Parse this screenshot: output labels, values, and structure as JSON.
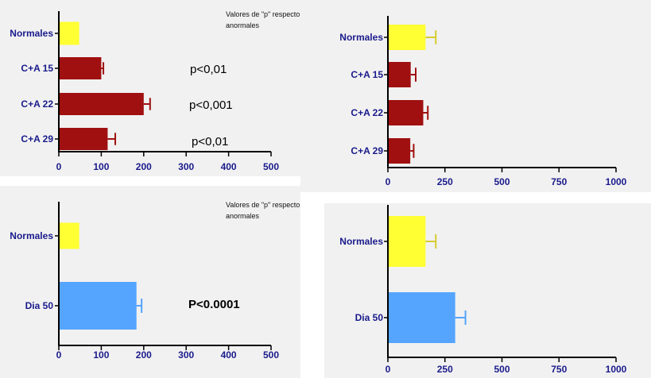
{
  "colors": {
    "normales": "#ffff33",
    "ca": "#a01010",
    "dia": "#55a5ff",
    "error_ca": "#a01010",
    "error_normales": "#d6cc30",
    "error_dia": "#55a5ff",
    "axis_text": "#1a1a8c"
  },
  "chart_data": [
    {
      "type": "bar",
      "orientation": "horizontal",
      "categories": [
        "Normales",
        "C+A 15",
        "C+A 22",
        "C+A 29"
      ],
      "values": [
        48,
        100,
        200,
        115
      ],
      "errors": [
        0,
        5,
        15,
        18
      ],
      "xlim": [
        0,
        500
      ],
      "xticks": [
        "0",
        "100",
        "200",
        "300",
        "400",
        "500"
      ],
      "note_line1": "Valores de \"p\" respecto",
      "note_line2": "anormales",
      "annotations": [
        "p<0,01",
        "p<0,001",
        "p<0,01"
      ]
    },
    {
      "type": "bar",
      "orientation": "horizontal",
      "categories": [
        "Normales",
        "C+A 15",
        "C+A 22",
        "C+A 29"
      ],
      "values": [
        165,
        100,
        155,
        98
      ],
      "errors": [
        45,
        22,
        20,
        15
      ],
      "xlim": [
        0,
        1000
      ],
      "xticks": [
        "0",
        "250",
        "500",
        "750",
        "1000"
      ]
    },
    {
      "type": "bar",
      "orientation": "horizontal",
      "categories": [
        "Normales",
        "Dia 50"
      ],
      "values": [
        48,
        183
      ],
      "errors": [
        0,
        12
      ],
      "xlim": [
        0,
        500
      ],
      "xticks": [
        "0",
        "100",
        "200",
        "300",
        "400",
        "500"
      ],
      "note_line1": "Valores de \"p\" respecto",
      "note_line2": "anormales",
      "annotations": [
        "P<0.0001"
      ]
    },
    {
      "type": "bar",
      "orientation": "horizontal",
      "categories": [
        "Normales",
        "Dia 50"
      ],
      "values": [
        165,
        295
      ],
      "errors": [
        45,
        45
      ],
      "xlim": [
        0,
        1000
      ],
      "xticks": [
        "0",
        "250",
        "500",
        "750",
        "1000"
      ]
    }
  ]
}
